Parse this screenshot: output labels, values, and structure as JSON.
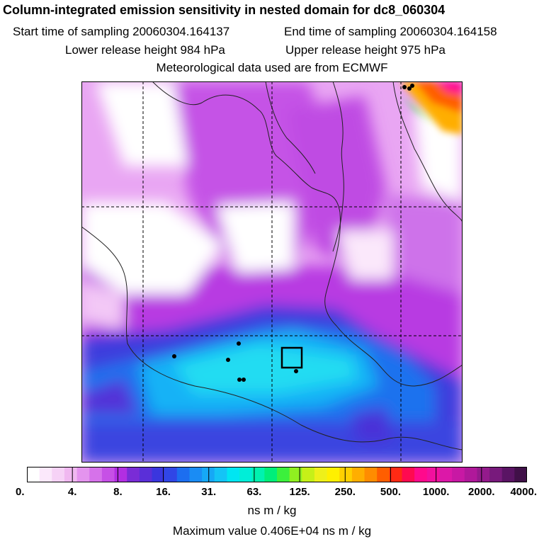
{
  "header": {
    "title": "Column-integrated emission sensitivity in nested domain for dc8_060304",
    "start_label": "Start time of sampling 20060304.164137",
    "end_label": "End time of sampling 20060304.164158",
    "lower_label": "Lower release height  984 hPa",
    "upper_label": "Upper release height  975 hPa",
    "met_label": "Meteorological data used are from ECMWF"
  },
  "colorbar": {
    "colors": [
      "#ffffff",
      "#fbe8fb",
      "#f6d2f6",
      "#f0b8f0",
      "#e494ee",
      "#d672ea",
      "#c650e6",
      "#b22ee2",
      "#7a2cd6",
      "#5a2fd8",
      "#3a36de",
      "#3046e6",
      "#1c6ef0",
      "#1a8cf4",
      "#16a8f6",
      "#14c4f6",
      "#00e6f2",
      "#00eed8",
      "#00f2b0",
      "#00ee7a",
      "#3cf03c",
      "#90f020",
      "#c6f018",
      "#eef01a",
      "#fff000",
      "#ffd000",
      "#ffae00",
      "#ff8c00",
      "#ff5e00",
      "#ff2a14",
      "#ff0a50",
      "#ff0a8c",
      "#f2109e",
      "#dc18a8",
      "#c818a4",
      "#b0189a",
      "#941a8c",
      "#781a7c",
      "#5a1464",
      "#401048"
    ],
    "tick_labels": [
      "0.",
      "4.",
      "8.",
      "16.",
      "31.",
      "63.",
      "125.",
      "250.",
      "500.",
      "1000.",
      "2000.",
      "4000."
    ],
    "units": "ns m / kg"
  },
  "footer": {
    "max_value": "Maximum value  0.406E+04 ns m / kg"
  }
}
